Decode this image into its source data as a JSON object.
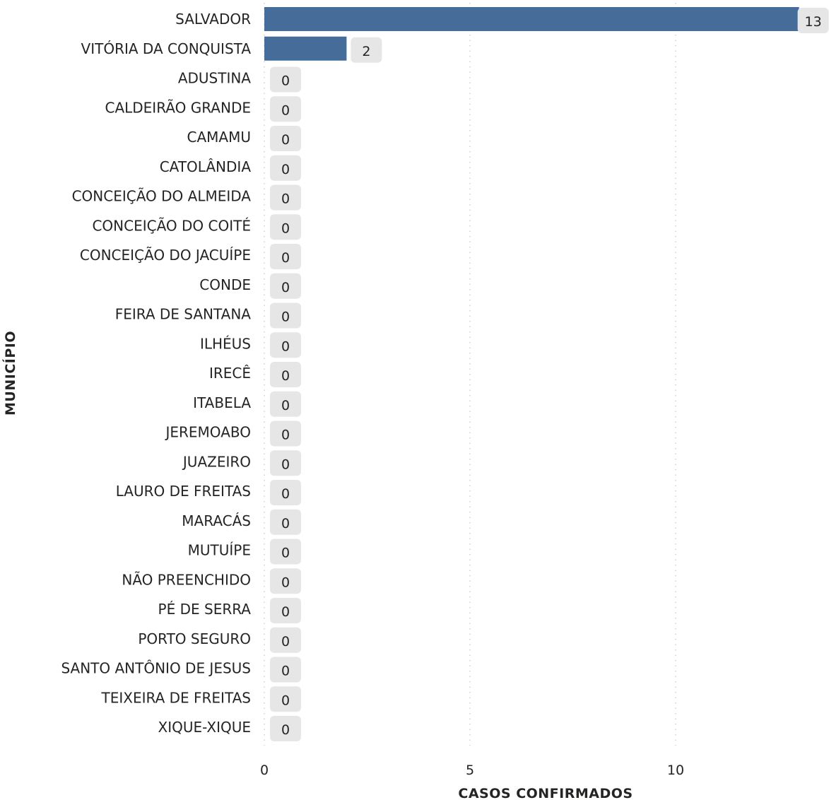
{
  "chart_data": {
    "type": "bar",
    "orientation": "horizontal",
    "title": "",
    "xlabel": "CASOS CONFIRMADOS",
    "ylabel": "MUNICÍPIO",
    "categories": [
      "SALVADOR",
      "VITÓRIA DA CONQUISTA",
      "ADUSTINA",
      "CALDEIRÃO GRANDE",
      "CAMAMU",
      "CATOLÂNDIA",
      "CONCEIÇÃO DO ALMEIDA",
      "CONCEIÇÃO DO COITÉ",
      "CONCEIÇÃO DO JACUÍPE",
      "CONDE",
      "FEIRA DE SANTANA",
      "ILHÉUS",
      "IRECÊ",
      "ITABELA",
      "JEREMOABO",
      "JUAZEIRO",
      "LAURO DE FREITAS",
      "MARACÁS",
      "MUTUÍPE",
      "NÃO PREENCHIDO",
      "PÉ DE SERRA",
      "PORTO SEGURO",
      "SANTO ANTÔNIO DE JESUS",
      "TEIXEIRA DE FREITAS",
      "XIQUE-XIQUE"
    ],
    "values": [
      13,
      2,
      0,
      0,
      0,
      0,
      0,
      0,
      0,
      0,
      0,
      0,
      0,
      0,
      0,
      0,
      0,
      0,
      0,
      0,
      0,
      0,
      0,
      0,
      0
    ],
    "xlim": [
      0,
      13.3
    ],
    "xticks": [
      0,
      5,
      10
    ],
    "xtick_labels": [
      "0",
      "5",
      "10"
    ],
    "grid": true,
    "legend": "none",
    "colors": {
      "bar": "#466c9a",
      "data_label_bg": "#e6e6e6",
      "text": "#252423",
      "grid": "#c8c8c8"
    }
  }
}
